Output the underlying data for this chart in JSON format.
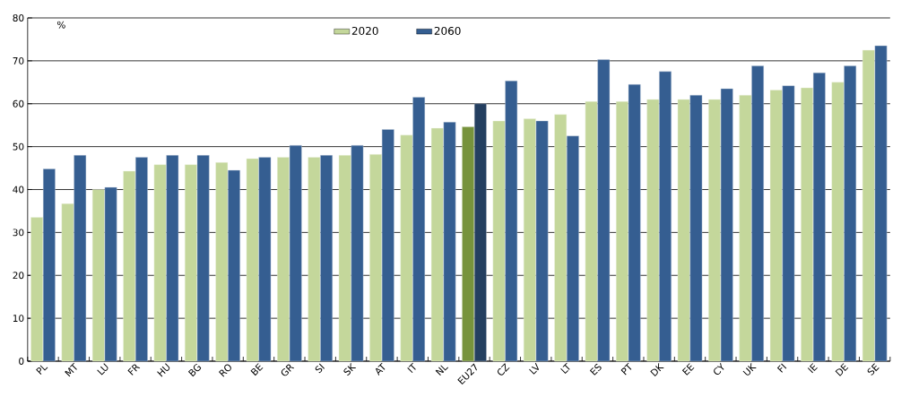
{
  "chart_data": {
    "type": "bar",
    "ylabel": "%",
    "categories": [
      "PL",
      "MT",
      "LU",
      "FR",
      "HU",
      "BG",
      "RO",
      "BE",
      "GR",
      "SI",
      "SK",
      "AT",
      "IT",
      "NL",
      "EU27",
      "CZ",
      "LV",
      "LT",
      "ES",
      "PT",
      "DK",
      "EE",
      "CY",
      "UK",
      "FI",
      "IE",
      "DE",
      "SE"
    ],
    "series": [
      {
        "name": "2020",
        "color": "#c4d79b",
        "colors": [
          "#c4d79b",
          "#c4d79b",
          "#c4d79b",
          "#c4d79b",
          "#c4d79b",
          "#c4d79b",
          "#c4d79b",
          "#c4d79b",
          "#c4d79b",
          "#c4d79b",
          "#c4d79b",
          "#c4d79b",
          "#c4d79b",
          "#c4d79b",
          "#77933c",
          "#c4d79b",
          "#c4d79b",
          "#c4d79b",
          "#c4d79b",
          "#c4d79b",
          "#c4d79b",
          "#c4d79b",
          "#c4d79b",
          "#c4d79b",
          "#c4d79b",
          "#c4d79b",
          "#c4d79b",
          "#c4d79b"
        ],
        "values": [
          33.5,
          36.7,
          40,
          44.3,
          45.8,
          45.8,
          46.3,
          47.2,
          47.5,
          47.5,
          48,
          48.2,
          52.7,
          54.3,
          54.6,
          56,
          56.5,
          57.5,
          60.5,
          60.5,
          61,
          61,
          61,
          62,
          63.2,
          63.7,
          65,
          72.5
        ]
      },
      {
        "name": "2060",
        "color": "#355e91",
        "colors": [
          "#355e91",
          "#355e91",
          "#355e91",
          "#355e91",
          "#355e91",
          "#355e91",
          "#355e91",
          "#355e91",
          "#355e91",
          "#355e91",
          "#355e91",
          "#355e91",
          "#355e91",
          "#355e91",
          "#243f60",
          "#355e91",
          "#355e91",
          "#355e91",
          "#355e91",
          "#355e91",
          "#355e91",
          "#355e91",
          "#355e91",
          "#355e91",
          "#355e91",
          "#355e91",
          "#355e91",
          "#355e91"
        ],
        "values": [
          44.8,
          48,
          40.5,
          47.5,
          48,
          48,
          44.5,
          47.5,
          50.3,
          48,
          50.3,
          54,
          61.5,
          55.7,
          60,
          65.3,
          56,
          52.5,
          70.3,
          64.5,
          67.5,
          62,
          63.5,
          68.8,
          64.2,
          67.2,
          68.8,
          73.5
        ]
      }
    ],
    "ylim": [
      0,
      80
    ],
    "yticks": [
      0,
      10,
      20,
      30,
      40,
      50,
      60,
      70,
      80
    ],
    "grid": "y",
    "legend": "top"
  }
}
